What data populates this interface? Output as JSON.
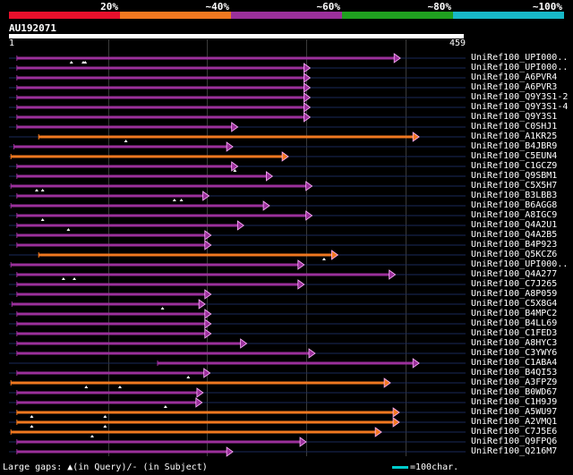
{
  "legend": {
    "labels": [
      "20%",
      "~40%",
      "~60%",
      "~80%",
      "~100%"
    ],
    "colors": [
      "#e8102c",
      "#f07820",
      "#9b309b",
      "#20a020",
      "#18b8c8"
    ]
  },
  "query": {
    "title": "AU192071",
    "start": "1",
    "end": "459",
    "length": 459
  },
  "hits": [
    {
      "label": "UniRef100_UPI000..",
      "color": "#9b309b",
      "start": 8,
      "end": 395,
      "marks": [
        63,
        75,
        77
      ]
    },
    {
      "label": "UniRef100_UPI000..",
      "color": "#9b309b",
      "start": 8,
      "end": 304,
      "marks": []
    },
    {
      "label": "UniRef100_A6PVR4",
      "color": "#9b309b",
      "start": 8,
      "end": 304,
      "marks": []
    },
    {
      "label": "UniRef100_A6PVR3",
      "color": "#9b309b",
      "start": 8,
      "end": 304,
      "marks": []
    },
    {
      "label": "UniRef100_Q9Y3S1-2",
      "color": "#9b309b",
      "start": 8,
      "end": 304,
      "marks": []
    },
    {
      "label": "UniRef100_Q9Y3S1-4",
      "color": "#9b309b",
      "start": 8,
      "end": 304,
      "marks": []
    },
    {
      "label": "UniRef100_Q9Y3S1",
      "color": "#9b309b",
      "start": 8,
      "end": 304,
      "marks": []
    },
    {
      "label": "UniRef100_C0SHJ1",
      "color": "#9b309b",
      "start": 8,
      "end": 231,
      "marks": []
    },
    {
      "label": "UniRef100_A1KR25",
      "color": "#f07820",
      "start": 30,
      "end": 414,
      "marks": [
        118
      ]
    },
    {
      "label": "UniRef100_B4JBR9",
      "color": "#9b309b",
      "start": 5,
      "end": 226,
      "marks": []
    },
    {
      "label": "UniRef100_C5EUN4",
      "color": "#f07820",
      "start": 2,
      "end": 282,
      "marks": []
    },
    {
      "label": "UniRef100_C1GCZ9",
      "color": "#9b309b",
      "start": 8,
      "end": 231,
      "marks": [
        228
      ]
    },
    {
      "label": "UniRef100_Q9SBM1",
      "color": "#9b309b",
      "start": 8,
      "end": 266,
      "marks": []
    },
    {
      "label": "UniRef100_C5X5H7",
      "color": "#9b309b",
      "start": 2,
      "end": 306,
      "marks": [
        28,
        34
      ]
    },
    {
      "label": "UniRef100_B3LBB3",
      "color": "#9b309b",
      "start": 8,
      "end": 202,
      "marks": [
        167,
        174
      ]
    },
    {
      "label": "UniRef100_B6AGG8",
      "color": "#9b309b",
      "start": 2,
      "end": 263,
      "marks": []
    },
    {
      "label": "UniRef100_A8IGC9",
      "color": "#9b309b",
      "start": 8,
      "end": 306,
      "marks": [
        34
      ]
    },
    {
      "label": "UniRef100_Q4A2U1",
      "color": "#9b309b",
      "start": 8,
      "end": 237,
      "marks": [
        60
      ]
    },
    {
      "label": "UniRef100_Q4A2B5",
      "color": "#9b309b",
      "start": 8,
      "end": 204,
      "marks": []
    },
    {
      "label": "UniRef100_B4P923",
      "color": "#9b309b",
      "start": 8,
      "end": 204,
      "marks": []
    },
    {
      "label": "UniRef100_Q5KCZ6",
      "color": "#f07820",
      "start": 30,
      "end": 332,
      "marks": [
        318
      ]
    },
    {
      "label": "UniRef100_UPI000..",
      "color": "#9b309b",
      "start": 2,
      "end": 298,
      "marks": []
    },
    {
      "label": "UniRef100_Q4A277",
      "color": "#9b309b",
      "start": 8,
      "end": 390,
      "marks": [
        55,
        66
      ]
    },
    {
      "label": "UniRef100_C7J265",
      "color": "#9b309b",
      "start": 8,
      "end": 298,
      "marks": []
    },
    {
      "label": "UniRef100_A8P059",
      "color": "#9b309b",
      "start": 8,
      "end": 204,
      "marks": []
    },
    {
      "label": "UniRef100_C5X8G4",
      "color": "#9b309b",
      "start": 3,
      "end": 198,
      "marks": [
        155
      ]
    },
    {
      "label": "UniRef100_B4MPC2",
      "color": "#9b309b",
      "start": 8,
      "end": 204,
      "marks": []
    },
    {
      "label": "UniRef100_B4LL69",
      "color": "#9b309b",
      "start": 8,
      "end": 204,
      "marks": []
    },
    {
      "label": "UniRef100_C1FED3",
      "color": "#9b309b",
      "start": 8,
      "end": 204,
      "marks": []
    },
    {
      "label": "UniRef100_A8HYC3",
      "color": "#9b309b",
      "start": 8,
      "end": 240,
      "marks": []
    },
    {
      "label": "UniRef100_C3YWY6",
      "color": "#9b309b",
      "start": 8,
      "end": 309,
      "marks": []
    },
    {
      "label": "UniRef100_C1ABA4",
      "color": "#9b309b",
      "start": 150,
      "end": 414,
      "marks": []
    },
    {
      "label": "UniRef100_B4QI53",
      "color": "#9b309b",
      "start": 8,
      "end": 203,
      "marks": [
        181
      ]
    },
    {
      "label": "UniRef100_A3FPZ9",
      "color": "#f07820",
      "start": 2,
      "end": 385,
      "marks": [
        78,
        112
      ]
    },
    {
      "label": "UniRef100_B0WD67",
      "color": "#9b309b",
      "start": 8,
      "end": 196,
      "marks": []
    },
    {
      "label": "UniRef100_C1H9J9",
      "color": "#9b309b",
      "start": 8,
      "end": 195,
      "marks": [
        158
      ]
    },
    {
      "label": "UniRef100_A5WU97",
      "color": "#f07820",
      "start": 8,
      "end": 394,
      "marks": [
        23,
        97
      ]
    },
    {
      "label": "UniRef100_A2VMQ1",
      "color": "#f07820",
      "start": 8,
      "end": 394,
      "marks": [
        23,
        97
      ]
    },
    {
      "label": "UniRef100_C7J5E6",
      "color": "#f07820",
      "start": 2,
      "end": 376,
      "marks": [
        84
      ]
    },
    {
      "label": "UniRef100_Q9FPQ6",
      "color": "#9b309b",
      "start": 8,
      "end": 300,
      "marks": []
    },
    {
      "label": "UniRef100_Q216M7",
      "color": "#9b309b",
      "start": 8,
      "end": 226,
      "marks": []
    }
  ],
  "footer": {
    "gaps_text": "Large gaps: ▲(in Query)/- (in Subject)",
    "scale_text": "=100char."
  }
}
